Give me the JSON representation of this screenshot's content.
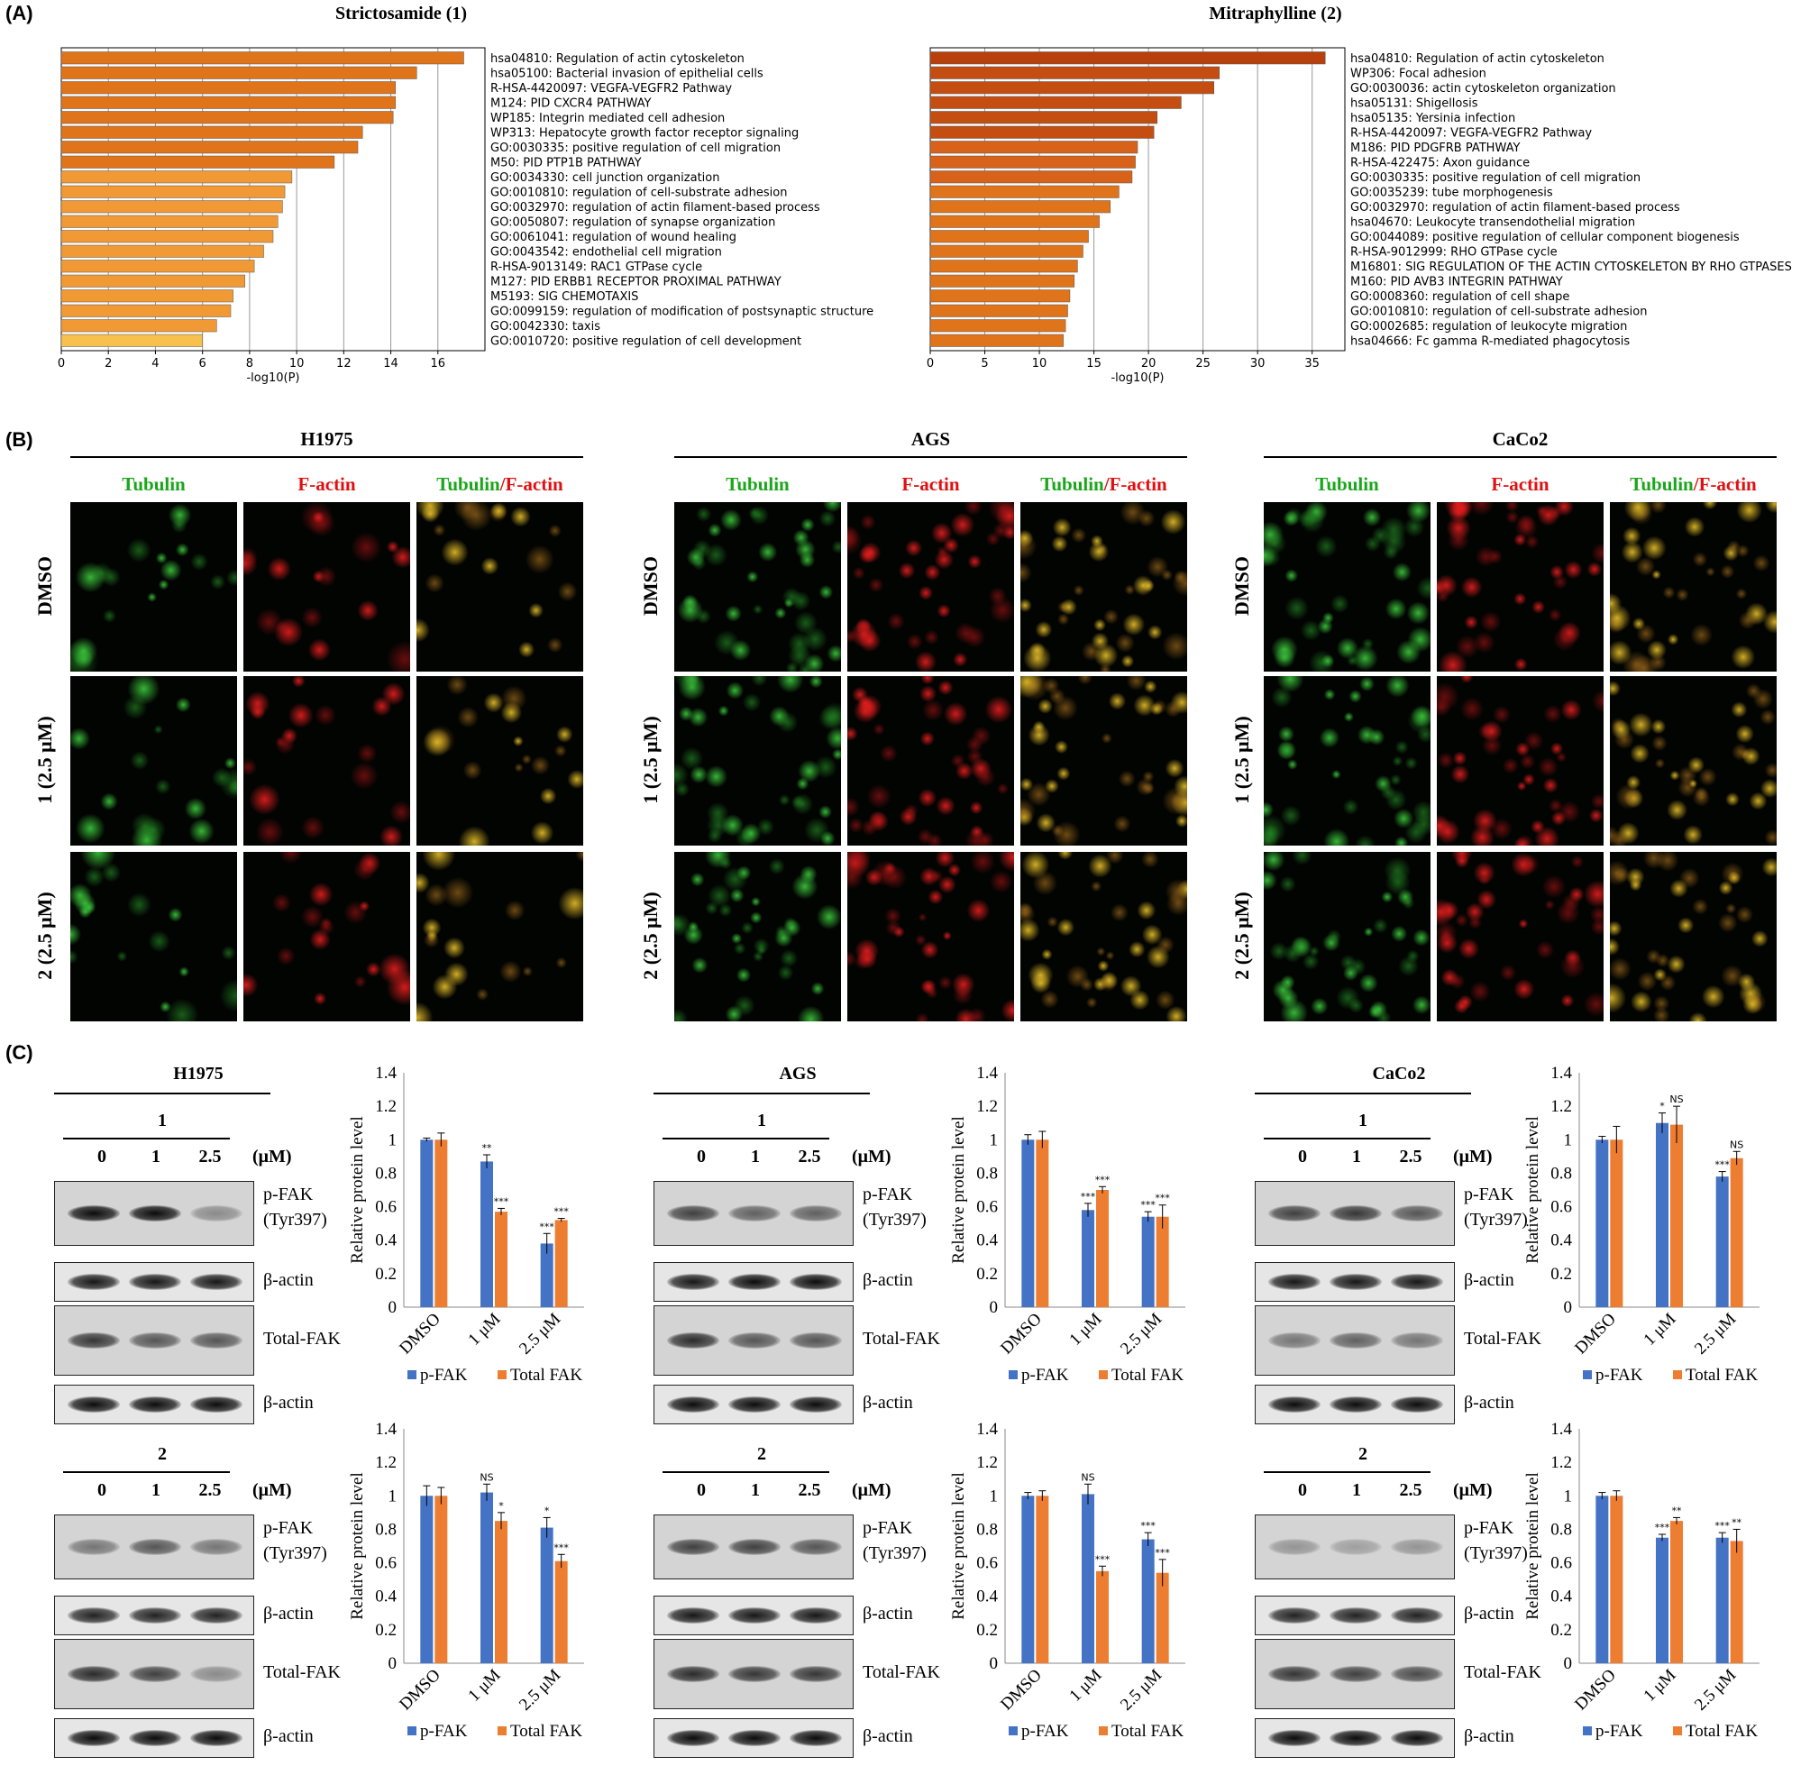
{
  "panelA": {
    "label": "(A)",
    "xlabel": "-log10(P)"
  },
  "panelB": {
    "label": "(B)",
    "cells": [
      "H1975",
      "AGS",
      "CaCo2"
    ],
    "channels": {
      "tubulin": "Tubulin",
      "factin": "F-actin",
      "sep": "/"
    },
    "rows": [
      "DMSO",
      "1 (2.5 μM)",
      "2 (2.5 μM)"
    ]
  },
  "panelC": {
    "label": "(C)",
    "cells": [
      "H1975",
      "AGS",
      "CaCo2"
    ],
    "doses": [
      "0",
      "1",
      "2.5"
    ],
    "unit": "(μM)",
    "blot_labels": [
      "p-FAK\n(Tyr397)",
      "β-actin",
      "Total-FAK",
      "β-actin"
    ],
    "p_fak_lines": [
      "p-FAK",
      "(Tyr397)"
    ],
    "bactin": "β-actin",
    "totalfak": "Total-FAK",
    "compounds": [
      "1",
      "2"
    ]
  },
  "chart_data": [
    {
      "type": "bar",
      "title": "Strictosamide (1)",
      "xlabel": "-log10(P)",
      "orientation": "horizontal",
      "xlim": [
        0,
        18
      ],
      "xticks": [
        0,
        2,
        4,
        6,
        8,
        10,
        12,
        14,
        16
      ],
      "categories": [
        "hsa04810: Regulation of actin cytoskeleton",
        "hsa05100: Bacterial invasion of epithelial cells",
        "R-HSA-4420097: VEGFA-VEGFR2 Pathway",
        "M124: PID CXCR4 PATHWAY",
        "WP185: Integrin mediated cell adhesion",
        "WP313: Hepatocyte growth factor receptor signaling",
        "GO:0030335: positive regulation of cell migration",
        "M50: PID PTP1B PATHWAY",
        "GO:0034330: cell junction organization",
        "GO:0010810: regulation of cell-substrate adhesion",
        "GO:0032970: regulation of actin filament-based process",
        "GO:0050807: regulation of synapse organization",
        "GO:0061041: regulation of wound healing",
        "GO:0043542: endothelial cell migration",
        "R-HSA-9013149: RAC1 GTPase cycle",
        "M127: PID ERBB1 RECEPTOR PROXIMAL PATHWAY",
        "M5193: SIG CHEMOTAXIS",
        "GO:0099159: regulation of modification of postsynaptic structure",
        "GO:0042330: taxis",
        "GO:0010720: positive regulation of cell development"
      ],
      "values": [
        17.1,
        15.1,
        14.2,
        14.2,
        14.1,
        12.8,
        12.6,
        11.6,
        9.8,
        9.5,
        9.4,
        9.2,
        9.0,
        8.6,
        8.2,
        7.8,
        7.3,
        7.2,
        6.6,
        6.0
      ],
      "colors": [
        "#e0741b",
        "#e0741b",
        "#e0741b",
        "#e0741b",
        "#e0741b",
        "#e0741b",
        "#e0741b",
        "#e0741b",
        "#f19a35",
        "#f19a35",
        "#f19a35",
        "#f19a35",
        "#f19a35",
        "#f19a35",
        "#f19a35",
        "#f19a35",
        "#f19a35",
        "#f19a35",
        "#f19a35",
        "#f8c04d"
      ]
    },
    {
      "type": "bar",
      "title": "Mitraphylline (2)",
      "xlabel": "-log10(P)",
      "orientation": "horizontal",
      "xlim": [
        0,
        38
      ],
      "xticks": [
        0,
        5,
        10,
        15,
        20,
        25,
        30,
        35
      ],
      "categories": [
        "hsa04810: Regulation of actin cytoskeleton",
        "WP306: Focal adhesion",
        "GO:0030036: actin cytoskeleton organization",
        "hsa05131: Shigellosis",
        "hsa05135: Yersinia infection",
        "R-HSA-4420097: VEGFA-VEGFR2 Pathway",
        "M186: PID PDGFRB PATHWAY",
        "R-HSA-422475: Axon guidance",
        "GO:0030335: positive regulation of cell migration",
        "GO:0035239: tube morphogenesis",
        "GO:0032970: regulation of actin filament-based process",
        "hsa04670: Leukocyte transendothelial migration",
        "GO:0044089: positive regulation of cellular component biogenesis",
        "R-HSA-9012999: RHO GTPase cycle",
        "M16801: SIG REGULATION OF THE ACTIN CYTOSKELETON BY RHO GTPASES",
        "M160: PID AVB3 INTEGRIN PATHWAY",
        "GO:0008360: regulation of cell shape",
        "GO:0010810: regulation of cell-substrate adhesion",
        "GO:0002685: regulation of leukocyte migration",
        "hsa04666: Fc gamma R-mediated phagocytosis"
      ],
      "values": [
        36.2,
        26.5,
        26.0,
        23.0,
        20.8,
        20.5,
        19.0,
        18.8,
        18.5,
        17.3,
        16.5,
        15.5,
        14.5,
        14.0,
        13.5,
        13.2,
        12.8,
        12.6,
        12.4,
        12.2
      ],
      "colors": [
        "#b8400c",
        "#c44e12",
        "#c44e12",
        "#c44e12",
        "#c44e12",
        "#c44e12",
        "#d8621a",
        "#d8621a",
        "#d8621a",
        "#e0741b",
        "#e0741b",
        "#e0741b",
        "#e0741b",
        "#e0741b",
        "#e0741b",
        "#e0741b",
        "#e0741b",
        "#e0741b",
        "#e0741b",
        "#e0741b"
      ]
    },
    {
      "type": "bar",
      "cell": "H1975",
      "compound": "1",
      "ylabel": "Relative protein level",
      "ylim": [
        0,
        1.4
      ],
      "yticks": [
        "0",
        "0.2",
        "0.4",
        "0.6",
        "0.8",
        "1",
        "1.2",
        "1.4"
      ],
      "categories": [
        "DMSO",
        "1 μM",
        "2.5 μM"
      ],
      "series": [
        {
          "name": "p-FAK",
          "color": "#4472c4",
          "values": [
            1.0,
            0.87,
            0.38
          ],
          "errors": [
            0.01,
            0.04,
            0.06
          ],
          "sig": [
            "",
            "**",
            "***"
          ]
        },
        {
          "name": "Total FAK",
          "color": "#ed7d31",
          "values": [
            1.0,
            0.57,
            0.52
          ],
          "errors": [
            0.04,
            0.02,
            0.01
          ],
          "sig": [
            "",
            "***",
            "***"
          ]
        }
      ]
    },
    {
      "type": "bar",
      "cell": "AGS",
      "compound": "1",
      "ylabel": "Relative protein level",
      "ylim": [
        0,
        1.4
      ],
      "yticks": [
        "0",
        "0.2",
        "0.4",
        "0.6",
        "0.8",
        "1",
        "1.2",
        "1.4"
      ],
      "categories": [
        "DMSO",
        "1 μM",
        "2.5 μM"
      ],
      "series": [
        {
          "name": "p-FAK",
          "color": "#4472c4",
          "values": [
            1.0,
            0.58,
            0.54
          ],
          "errors": [
            0.03,
            0.04,
            0.03
          ],
          "sig": [
            "",
            "***",
            "***"
          ]
        },
        {
          "name": "Total FAK",
          "color": "#ed7d31",
          "values": [
            1.0,
            0.7,
            0.54
          ],
          "errors": [
            0.05,
            0.02,
            0.07
          ],
          "sig": [
            "",
            "***",
            "***"
          ]
        }
      ]
    },
    {
      "type": "bar",
      "cell": "CaCo2",
      "compound": "1",
      "ylabel": "Relative protein level",
      "ylim": [
        0,
        1.4
      ],
      "yticks": [
        "0",
        "0.2",
        "0.4",
        "0.6",
        "0.8",
        "1",
        "1.2",
        "1.4"
      ],
      "categories": [
        "DMSO",
        "1 μM",
        "2.5 μM"
      ],
      "series": [
        {
          "name": "p-FAK",
          "color": "#4472c4",
          "values": [
            1.0,
            1.1,
            0.78
          ],
          "errors": [
            0.02,
            0.06,
            0.03
          ],
          "sig": [
            "",
            "*",
            "***"
          ]
        },
        {
          "name": "Total FAK",
          "color": "#ed7d31",
          "values": [
            1.0,
            1.09,
            0.89
          ],
          "errors": [
            0.08,
            0.11,
            0.04
          ],
          "sig": [
            "",
            "NS",
            "NS"
          ]
        }
      ]
    },
    {
      "type": "bar",
      "cell": "H1975",
      "compound": "2",
      "ylabel": "Relative protein level",
      "ylim": [
        0,
        1.4
      ],
      "yticks": [
        "0",
        "0.2",
        "0.4",
        "0.6",
        "0.8",
        "1",
        "1.2",
        "1.4"
      ],
      "categories": [
        "DMSO",
        "1 μM",
        "2.5 μM"
      ],
      "series": [
        {
          "name": "p-FAK",
          "color": "#4472c4",
          "values": [
            1.0,
            1.02,
            0.81
          ],
          "errors": [
            0.06,
            0.05,
            0.06
          ],
          "sig": [
            "",
            "NS",
            "*"
          ]
        },
        {
          "name": "Total FAK",
          "color": "#ed7d31",
          "values": [
            1.0,
            0.85,
            0.61
          ],
          "errors": [
            0.05,
            0.05,
            0.04
          ],
          "sig": [
            "",
            "*",
            "***"
          ]
        }
      ]
    },
    {
      "type": "bar",
      "cell": "AGS",
      "compound": "2",
      "ylabel": "Relative protein level",
      "ylim": [
        0,
        1.4
      ],
      "yticks": [
        "0",
        "0.2",
        "0.4",
        "0.6",
        "0.8",
        "1",
        "1.2",
        "1.4"
      ],
      "categories": [
        "DMSO",
        "1 μM",
        "2.5 μM"
      ],
      "series": [
        {
          "name": "p-FAK",
          "color": "#4472c4",
          "values": [
            1.0,
            1.01,
            0.74
          ],
          "errors": [
            0.02,
            0.06,
            0.04
          ],
          "sig": [
            "",
            "NS",
            "***"
          ]
        },
        {
          "name": "Total FAK",
          "color": "#ed7d31",
          "values": [
            1.0,
            0.55,
            0.54
          ],
          "errors": [
            0.03,
            0.03,
            0.08
          ],
          "sig": [
            "",
            "***",
            "***"
          ]
        }
      ]
    },
    {
      "type": "bar",
      "cell": "CaCo2",
      "compound": "2",
      "ylabel": "Relative protein level",
      "ylim": [
        0,
        1.4
      ],
      "yticks": [
        "0",
        "0.2",
        "0.4",
        "0.6",
        "0.8",
        "1",
        "1.2",
        "1.4"
      ],
      "categories": [
        "DMSO",
        "1 μM",
        "2.5 μM"
      ],
      "series": [
        {
          "name": "p-FAK",
          "color": "#4472c4",
          "values": [
            1.0,
            0.75,
            0.75
          ],
          "errors": [
            0.02,
            0.02,
            0.03
          ],
          "sig": [
            "",
            "***",
            "***"
          ]
        },
        {
          "name": "Total FAK",
          "color": "#ed7d31",
          "values": [
            1.0,
            0.85,
            0.73
          ],
          "errors": [
            0.03,
            0.02,
            0.07
          ],
          "sig": [
            "",
            "**",
            "**"
          ]
        }
      ]
    }
  ]
}
